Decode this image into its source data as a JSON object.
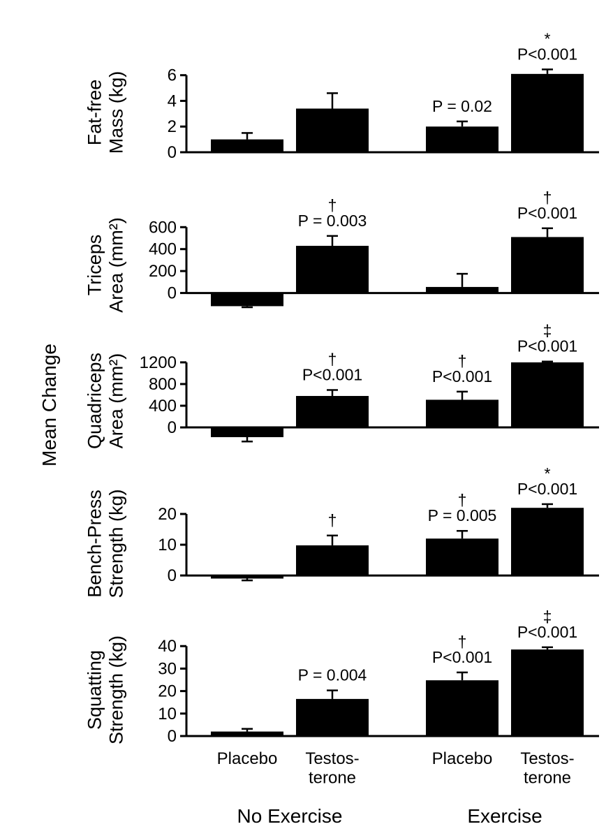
{
  "chart_data": {
    "type": "bar",
    "common_ylabel": "Mean Change",
    "categories": [
      "Placebo",
      "Testos-\nterone",
      "Placebo",
      "Testos-\nterone"
    ],
    "groups": [
      {
        "label": "No Exercise",
        "categories": [
          0,
          1
        ]
      },
      {
        "label": "Exercise",
        "categories": [
          2,
          3
        ]
      }
    ],
    "panels": [
      {
        "id": "fat-free-mass",
        "ylabel": [
          "Fat-free",
          "Mass (kg)"
        ],
        "ylim": [
          0,
          6.2
        ],
        "yticks": [
          0,
          2,
          4,
          6
        ],
        "values": [
          1.0,
          3.4,
          2.0,
          6.1
        ],
        "errors": [
          0.5,
          1.2,
          0.4,
          0.35
        ],
        "annotations": [
          "",
          "",
          "P = 0.02",
          "P<0.001"
        ],
        "symbols": [
          "",
          "",
          "",
          "*"
        ]
      },
      {
        "id": "triceps-area",
        "ylabel": [
          "Triceps",
          "Area (mm²)"
        ],
        "ylim": [
          -130,
          640
        ],
        "yticks": [
          0,
          200,
          400,
          600
        ],
        "values": [
          -120,
          430,
          55,
          510
        ],
        "errors": [
          10,
          90,
          120,
          80
        ],
        "annotations": [
          "",
          "P = 0.003",
          "",
          "P<0.001"
        ],
        "symbols": [
          "",
          "†",
          "",
          "†"
        ]
      },
      {
        "id": "quadriceps-area",
        "ylabel": [
          "Quadriceps",
          "Area (mm²)"
        ],
        "ylim": [
          -270,
          1250
        ],
        "yticks": [
          0,
          400,
          800,
          1200
        ],
        "values": [
          -180,
          580,
          510,
          1200
        ],
        "errors": [
          80,
          110,
          150,
          15
        ],
        "annotations": [
          "",
          "P<0.001",
          "P<0.001",
          "P<0.001"
        ],
        "symbols": [
          "",
          "†",
          "†",
          "‡"
        ]
      },
      {
        "id": "bench-press-strength",
        "ylabel": [
          "Bench-Press",
          "Strength (kg)"
        ],
        "ylim": [
          -1.8,
          22.5
        ],
        "yticks": [
          0,
          10,
          20
        ],
        "values": [
          -1.0,
          9.8,
          12.0,
          22.0
        ],
        "errors": [
          0.6,
          3.2,
          2.5,
          1.2
        ],
        "annotations": [
          "",
          "",
          "P = 0.005",
          "P<0.001"
        ],
        "symbols": [
          "",
          "†",
          "†",
          "*"
        ]
      },
      {
        "id": "squatting-strength",
        "ylabel": [
          "Squatting",
          "Strength (kg)"
        ],
        "ylim": [
          0,
          41
        ],
        "yticks": [
          0,
          10,
          20,
          30,
          40
        ],
        "values": [
          2.0,
          16.5,
          24.8,
          38.5
        ],
        "errors": [
          1.2,
          3.8,
          3.5,
          1.0
        ],
        "annotations": [
          "",
          "P = 0.004",
          "P<0.001",
          "P<0.001"
        ],
        "symbols": [
          "",
          "",
          "†",
          "‡"
        ]
      }
    ]
  }
}
